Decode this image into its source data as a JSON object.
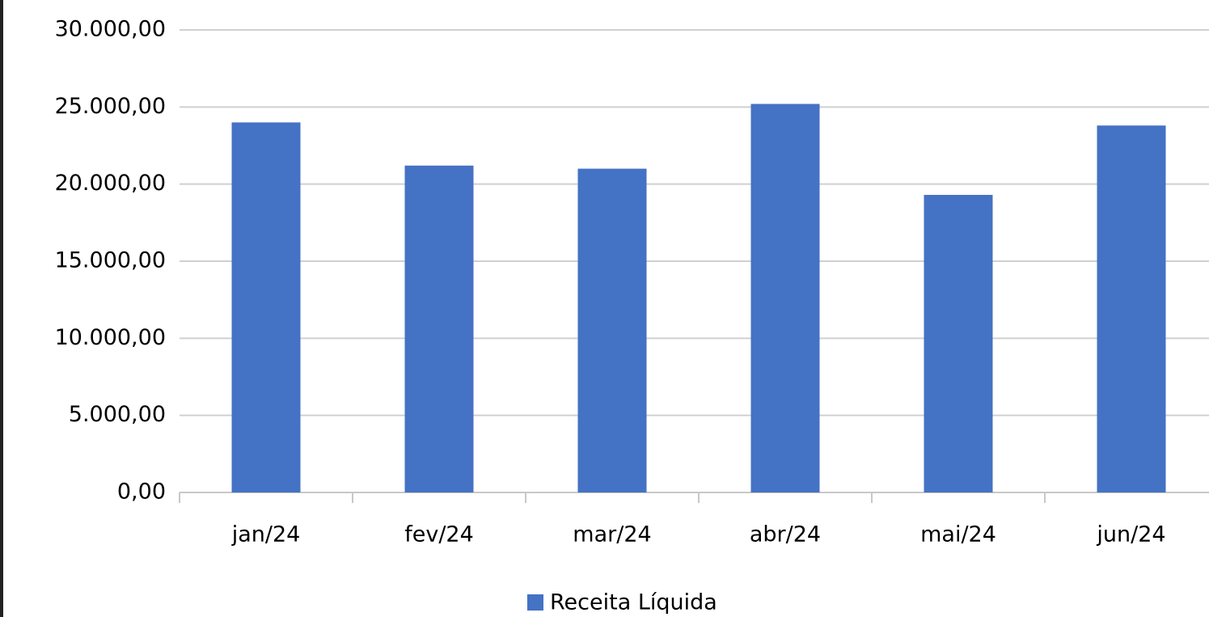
{
  "chart_data": {
    "type": "bar",
    "categories": [
      "jan/24",
      "fev/24",
      "mar/24",
      "abr/24",
      "mai/24",
      "jun/24"
    ],
    "series": [
      {
        "name": "Receita Líquida",
        "color": "#4472c4",
        "values": [
          24000,
          21200,
          21000,
          25200,
          19300,
          23800
        ]
      }
    ],
    "ylim": [
      0,
      30000
    ],
    "yticks": [
      {
        "value": 0,
        "label": "0,00"
      },
      {
        "value": 5000,
        "label": "5.000,00"
      },
      {
        "value": 10000,
        "label": "10.000,00"
      },
      {
        "value": 15000,
        "label": "15.000,00"
      },
      {
        "value": 20000,
        "label": "20.000,00"
      },
      {
        "value": 25000,
        "label": "25.000,00"
      },
      {
        "value": 30000,
        "label": "30.000,00"
      }
    ],
    "grid": true,
    "legend": "bottom"
  }
}
